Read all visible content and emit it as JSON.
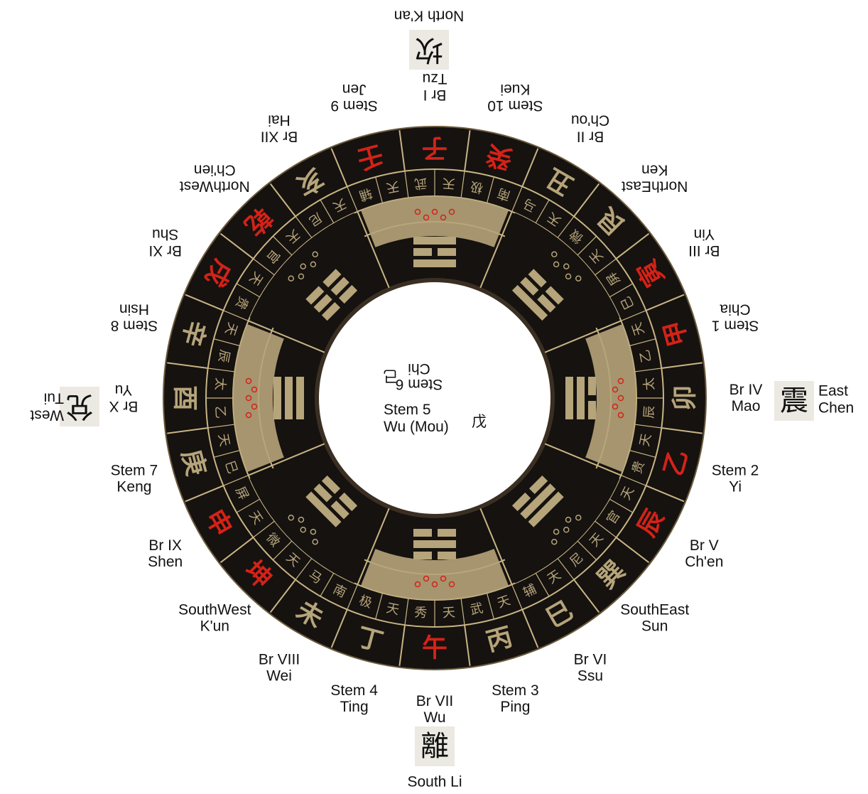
{
  "center": {
    "top_lines": [
      "Stem 6",
      "Chi"
    ],
    "top_glyph": "己",
    "bottom_lines": [
      "Stem 5",
      "Wu (Mou)"
    ],
    "bottom_glyph": "戊"
  },
  "directions": [
    {
      "id": "north",
      "glyph": "坎",
      "lines": [
        "North K'an"
      ],
      "flip": true
    },
    {
      "id": "south",
      "glyph": "離",
      "lines": [
        "South Li"
      ],
      "flip": false
    },
    {
      "id": "east",
      "glyph": "震",
      "lines": [
        "East",
        "Chen"
      ],
      "flip": false
    },
    {
      "id": "west",
      "glyph": "兌",
      "lines": [
        "West",
        "Tui"
      ],
      "flip": true
    }
  ],
  "outer_labels": [
    {
      "id": "br-1",
      "lines": [
        "Br I",
        "Tzu"
      ],
      "flip": true
    },
    {
      "id": "stem-10",
      "lines": [
        "Stem 10",
        "Kuei"
      ],
      "flip": true
    },
    {
      "id": "br-2",
      "lines": [
        "Br II",
        "Ch'ou"
      ],
      "flip": true
    },
    {
      "id": "northeast",
      "lines": [
        "NorthEast",
        "Ken"
      ],
      "flip": true
    },
    {
      "id": "br-3",
      "lines": [
        "Br III",
        "Yin"
      ],
      "flip": true
    },
    {
      "id": "stem-1",
      "lines": [
        "Stem 1",
        "Chia"
      ],
      "flip": true
    },
    {
      "id": "br-4",
      "lines": [
        "Br IV",
        "Mao"
      ],
      "flip": false
    },
    {
      "id": "stem-2",
      "lines": [
        "Stem 2",
        "Yi"
      ],
      "flip": false
    },
    {
      "id": "br-5",
      "lines": [
        "Br V",
        "Ch'en"
      ],
      "flip": false
    },
    {
      "id": "southeast",
      "lines": [
        "SouthEast",
        "Sun"
      ],
      "flip": false
    },
    {
      "id": "br-6",
      "lines": [
        "Br VI",
        "Ssu"
      ],
      "flip": false
    },
    {
      "id": "stem-3",
      "lines": [
        "Stem 3",
        "Ping"
      ],
      "flip": false
    },
    {
      "id": "br-7",
      "lines": [
        "Br VII",
        "Wu"
      ],
      "flip": false
    },
    {
      "id": "stem-4",
      "lines": [
        "Stem 4",
        "Ting"
      ],
      "flip": false
    },
    {
      "id": "br-8",
      "lines": [
        "Br VIII",
        "Wei"
      ],
      "flip": false
    },
    {
      "id": "southwest",
      "lines": [
        "SouthWest",
        "K'un"
      ],
      "flip": false
    },
    {
      "id": "br-9",
      "lines": [
        "Br IX",
        "Shen"
      ],
      "flip": false
    },
    {
      "id": "stem-7",
      "lines": [
        "Stem 7",
        "Keng"
      ],
      "flip": false
    },
    {
      "id": "br-10",
      "lines": [
        "Br X",
        "Yu"
      ],
      "flip": true
    },
    {
      "id": "stem-8",
      "lines": [
        "Stem 8",
        "Hsin"
      ],
      "flip": true
    },
    {
      "id": "br-11",
      "lines": [
        "Br XI",
        "Shu"
      ],
      "flip": true
    },
    {
      "id": "northwest",
      "lines": [
        "NorthWest",
        "Ch'ien"
      ],
      "flip": true
    },
    {
      "id": "br-12",
      "lines": [
        "Br XII",
        "Hai"
      ],
      "flip": true
    },
    {
      "id": "stem-9",
      "lines": [
        "Stem 9",
        "Jen"
      ],
      "flip": true
    }
  ],
  "ring_characters": [
    {
      "glyph": "子",
      "red": true
    },
    {
      "glyph": "癸",
      "red": true
    },
    {
      "glyph": "丑",
      "red": false
    },
    {
      "glyph": "艮",
      "red": false
    },
    {
      "glyph": "寅",
      "red": true
    },
    {
      "glyph": "甲",
      "red": true
    },
    {
      "glyph": "卯",
      "red": false
    },
    {
      "glyph": "乙",
      "red": true
    },
    {
      "glyph": "辰",
      "red": true
    },
    {
      "glyph": "巽",
      "red": false
    },
    {
      "glyph": "巳",
      "red": false
    },
    {
      "glyph": "丙",
      "red": false
    },
    {
      "glyph": "午",
      "red": true
    },
    {
      "glyph": "丁",
      "red": false
    },
    {
      "glyph": "未",
      "red": false
    },
    {
      "glyph": "坤",
      "red": true
    },
    {
      "glyph": "申",
      "red": true
    },
    {
      "glyph": "庚",
      "red": false
    },
    {
      "glyph": "酉",
      "red": false
    },
    {
      "glyph": "辛",
      "red": false
    },
    {
      "glyph": "戌",
      "red": true
    },
    {
      "glyph": "乾",
      "red": true
    },
    {
      "glyph": "亥",
      "red": false
    },
    {
      "glyph": "壬",
      "red": true
    }
  ],
  "star_ring": [
    "天",
    "极",
    "南",
    "马",
    "天",
    "微",
    "天",
    "屏",
    "巳",
    "天",
    "乙",
    "太",
    "辰",
    "天",
    "贵",
    "天",
    "官",
    "天",
    "尼",
    "天",
    "辅",
    "天",
    "武",
    "天",
    "秀"
  ],
  "colors": {
    "black": "#151210",
    "gold": "#b6a47a",
    "red": "#d42218",
    "gold_line": "#c9b583"
  }
}
